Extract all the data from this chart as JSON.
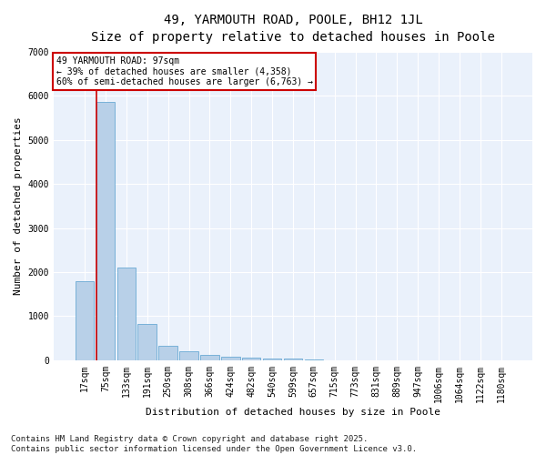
{
  "title_line1": "49, YARMOUTH ROAD, POOLE, BH12 1JL",
  "title_line2": "Size of property relative to detached houses in Poole",
  "xlabel": "Distribution of detached houses by size in Poole",
  "ylabel": "Number of detached properties",
  "categories": [
    "17sqm",
    "75sqm",
    "133sqm",
    "191sqm",
    "250sqm",
    "308sqm",
    "366sqm",
    "424sqm",
    "482sqm",
    "540sqm",
    "599sqm",
    "657sqm",
    "715sqm",
    "773sqm",
    "831sqm",
    "889sqm",
    "947sqm",
    "1006sqm",
    "1064sqm",
    "1122sqm",
    "1180sqm"
  ],
  "values": [
    1800,
    5850,
    2100,
    820,
    330,
    200,
    130,
    85,
    70,
    50,
    50,
    30,
    0,
    0,
    0,
    0,
    0,
    0,
    0,
    0,
    0
  ],
  "bar_color": "#b8d0e8",
  "bar_edge_color": "#6aaad4",
  "red_line_col": 1,
  "annotation_text": "49 YARMOUTH ROAD: 97sqm\n← 39% of detached houses are smaller (4,358)\n60% of semi-detached houses are larger (6,763) →",
  "annotation_box_color": "#ffffff",
  "annotation_box_edge": "#cc0000",
  "red_line_color": "#cc0000",
  "ylim": [
    0,
    7000
  ],
  "yticks": [
    0,
    1000,
    2000,
    3000,
    4000,
    5000,
    6000,
    7000
  ],
  "bg_color": "#eaf1fb",
  "plot_bg_color": "#dce9f5",
  "footer_text": "Contains HM Land Registry data © Crown copyright and database right 2025.\nContains public sector information licensed under the Open Government Licence v3.0.",
  "title_fontsize": 10,
  "subtitle_fontsize": 9,
  "axis_label_fontsize": 8,
  "tick_fontsize": 7,
  "footer_fontsize": 6.5,
  "annot_fontsize": 7
}
